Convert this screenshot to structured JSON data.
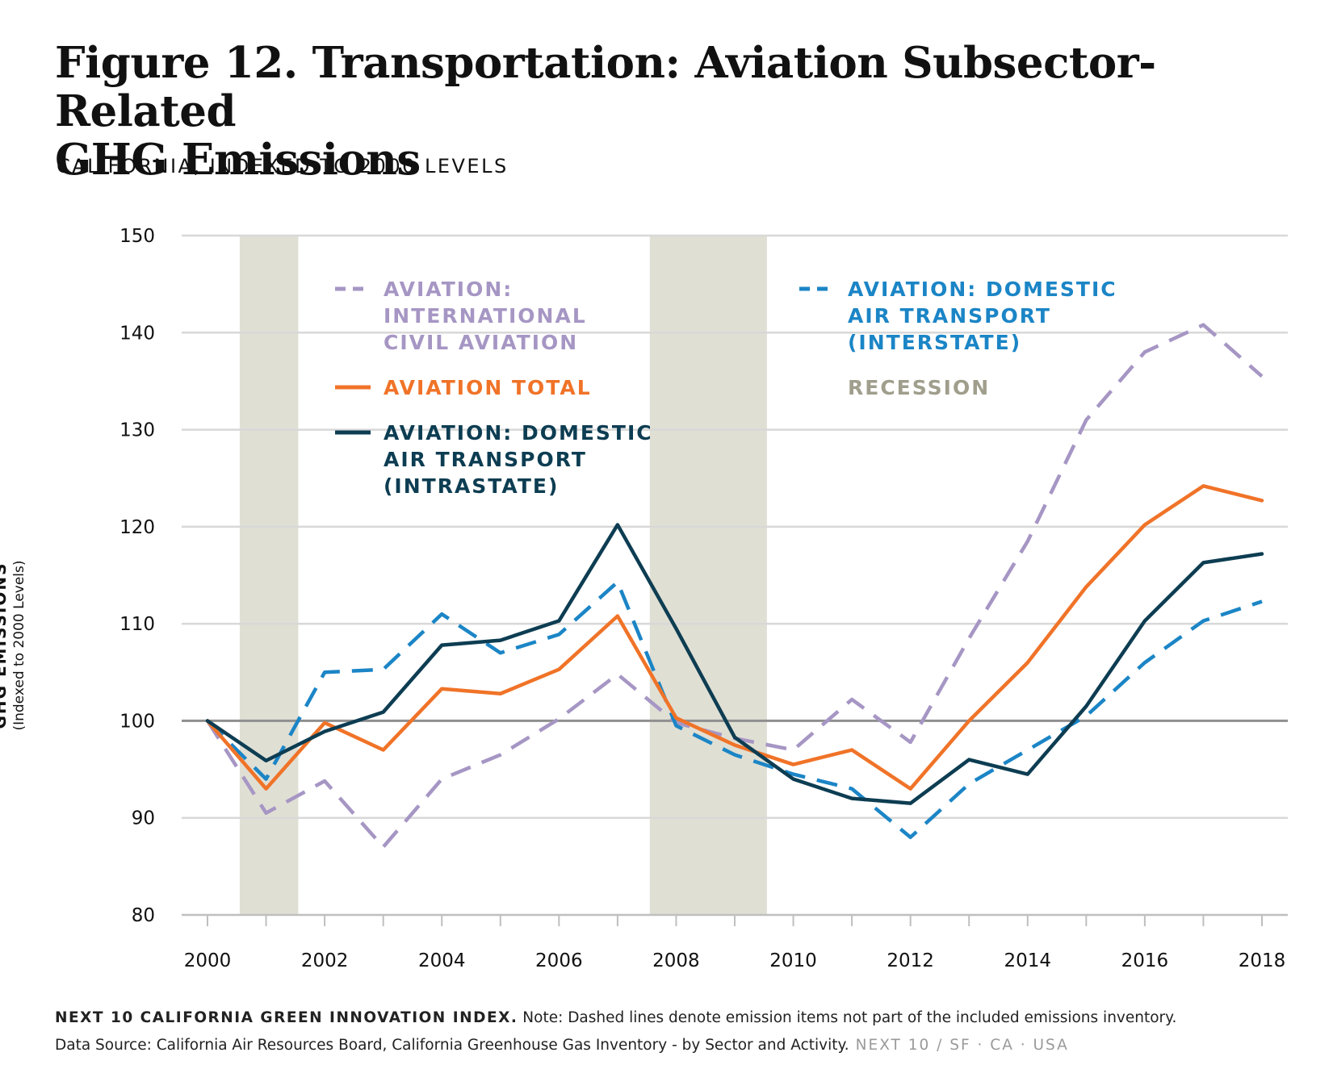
{
  "title_line1": "Figure 12. Transportation: Aviation Subsector-Related",
  "title_line2": "GHG Emissions",
  "subtitle": "CALIFORNIA, INDEXED TO 2000 LEVELS",
  "ylabel_main": "GHG EMISSIONS",
  "ylabel_sub": "(Indexed to 2000 Levels)",
  "footer": {
    "brand": "NEXT 10 CALIFORNIA GREEN INNOVATION INDEX.",
    "note": "Note: Dashed lines denote emission items not part of the included emissions inventory.",
    "source": "Data Source: California Air Resources Board, California Greenhouse Gas Inventory - by Sector and Activity.",
    "tag": "NEXT 10  /  SF · CA · USA"
  },
  "chart_data": {
    "type": "line",
    "x": [
      2000,
      2001,
      2002,
      2003,
      2004,
      2005,
      2006,
      2007,
      2008,
      2009,
      2010,
      2011,
      2012,
      2013,
      2014,
      2015,
      2016,
      2017,
      2018
    ],
    "xticks": [
      2000,
      2002,
      2004,
      2006,
      2008,
      2010,
      2012,
      2014,
      2016,
      2018
    ],
    "yticks": [
      80,
      90,
      100,
      110,
      120,
      130,
      140,
      150
    ],
    "ylim": [
      80,
      150
    ],
    "xlim": [
      2000,
      2018
    ],
    "grid": true,
    "baseline": 100,
    "recessions": [
      [
        2000.55,
        2001.55
      ],
      [
        2007.55,
        2009.55
      ]
    ],
    "series": [
      {
        "name": "AVIATION: INTERNATIONAL CIVIL AVIATION",
        "legend_lines": [
          "AVIATION:",
          "INTERNATIONAL",
          "CIVIL AVIATION"
        ],
        "color": "#a696c4",
        "dashed": true,
        "values": [
          100,
          90.5,
          93.8,
          87.0,
          94.0,
          96.5,
          100.2,
          104.8,
          99.8,
          98.2,
          97.0,
          102.2,
          97.8,
          108.5,
          118.5,
          131.0,
          138.0,
          140.8,
          135.5
        ]
      },
      {
        "name": "AVIATION TOTAL",
        "legend_lines": [
          "AVIATION TOTAL"
        ],
        "color": "#f07328",
        "dashed": false,
        "values": [
          100,
          93.0,
          99.8,
          97.0,
          103.3,
          102.8,
          105.3,
          110.8,
          100.3,
          97.5,
          95.5,
          97.0,
          93.0,
          100.0,
          106.0,
          113.8,
          120.2,
          124.2,
          122.7
        ]
      },
      {
        "name": "AVIATION: DOMESTIC AIR TRANSPORT (INTRASTATE)",
        "legend_lines": [
          "AVIATION: DOMESTIC",
          "AIR TRANSPORT",
          "(INTRASTATE)"
        ],
        "color": "#0d3d52",
        "dashed": false,
        "values": [
          100,
          95.9,
          98.9,
          100.9,
          107.8,
          108.3,
          110.3,
          120.2,
          109.5,
          98.3,
          94.0,
          92.0,
          91.5,
          96.0,
          94.5,
          101.5,
          110.3,
          116.3,
          117.2
        ]
      },
      {
        "name": "AVIATION: DOMESTIC AIR TRANSPORT (INTERSTATE)",
        "legend_lines": [
          "AVIATION: DOMESTIC",
          "AIR TRANSPORT",
          "(INTERSTATE)"
        ],
        "color": "#1b85c6",
        "dashed": true,
        "values": [
          100,
          94.0,
          105.0,
          105.3,
          111.0,
          107.0,
          108.9,
          114.3,
          99.5,
          96.5,
          94.5,
          93.0,
          88.0,
          93.5,
          97.0,
          100.5,
          106.0,
          110.3,
          112.3
        ]
      }
    ],
    "recession_label": "RECESSION",
    "colors": {
      "recession": "#e0dfd4",
      "grid": "#d8d8d8",
      "baseline": "#8f8f8f",
      "axis": "#bfbfbf",
      "recession_text": "#a09e8c"
    }
  }
}
